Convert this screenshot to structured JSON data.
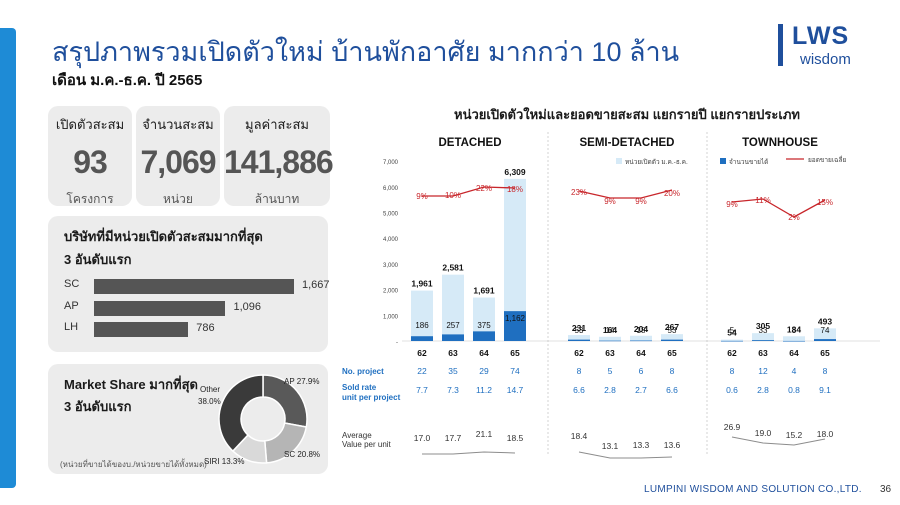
{
  "header": {
    "title": "สรุปภาพรวมเปิดตัวใหม่ บ้านพักอาศัย มากกว่า 10 ล้าน",
    "subtitle": "เดือน ม.ค.-ธ.ค. ปี 2565",
    "logo_main": "LWS",
    "logo_sub": "wisdom"
  },
  "kpis": [
    {
      "label": "เปิดตัวสะสม",
      "value": "93",
      "unit": "โครงการ"
    },
    {
      "label": "จำนวนสะสม",
      "value": "7,069",
      "unit": "หน่วย"
    },
    {
      "label": "มูลค่าสะสม",
      "value": "141,886",
      "unit": "ล้านบาท"
    }
  ],
  "companies": {
    "title": "บริษัทที่มีหน่วยเปิดตัวสะสมมากที่สุด",
    "subtitle": "3 อันดับแรก",
    "items": [
      {
        "name": "SC",
        "value": 1667,
        "label": "1,667"
      },
      {
        "name": "AP",
        "value": 1096,
        "label": "1,096"
      },
      {
        "name": "LH",
        "value": 786,
        "label": "786"
      }
    ]
  },
  "market_share": {
    "title": "Market Share มากที่สุด",
    "subtitle": "3 อันดับแรก",
    "note": "(หน่วยที่ขายได้ของบ./หน่วยขายได้ทั้งหมด)",
    "slices": [
      {
        "name": "AP",
        "value": 27.9,
        "label": "AP 27.9%",
        "color": "#595959"
      },
      {
        "name": "SC",
        "value": 20.8,
        "label": "SC 20.8%",
        "color": "#b5b5b5"
      },
      {
        "name": "SIRI",
        "value": 13.3,
        "label": "SIRI 13.3%",
        "color": "#d9d9d9"
      },
      {
        "name": "Other",
        "value": 38.0,
        "label_name": "Other",
        "label_value": "38.0%",
        "color": "#3a3a3a"
      }
    ]
  },
  "footer": {
    "company": "LUMPINI WISDOM AND SOLUTION CO.,LTD.",
    "page": "36"
  },
  "chart_data": {
    "type": "bar",
    "title": "หน่วยเปิดตัวใหม่และยอดขายสะสม แยกรายปี แยกรายประเภท",
    "legend": [
      {
        "name": "หน่วยเปิดตัว ม.ค.-ธ.ค.",
        "color": "#d6eaf7"
      },
      {
        "name": "จำนวนขายได้",
        "color": "#1f6fc0"
      },
      {
        "name": "ยอดขายเฉลี่ย",
        "color": "#c8262b"
      }
    ],
    "ylim": [
      0,
      7000
    ],
    "yticks": [
      "7,000",
      "6,000",
      "5,000",
      "4,000",
      "3,000",
      "2,000",
      "1,000",
      "-"
    ],
    "row_labels": {
      "projects": "No. project",
      "sold_rate": "Sold rate unit per project",
      "avg_value": "Average Value per unit"
    },
    "groups": [
      {
        "name": "DETACHED",
        "years": [
          "62",
          "63",
          "64",
          "65"
        ],
        "launched": [
          1961,
          2581,
          1691,
          6309
        ],
        "launched_labels": [
          "1,961",
          "2,581",
          "1,691",
          "6,309"
        ],
        "sold": [
          186,
          257,
          375,
          1162
        ],
        "sold_labels": [
          "186",
          "257",
          "375",
          "1,162"
        ],
        "sales_rate": [
          "9%",
          "10%",
          "22%",
          "18%"
        ],
        "projects": [
          "22",
          "35",
          "29",
          "74"
        ],
        "sold_rate": [
          "7.7",
          "7.3",
          "11.2",
          "14.7"
        ],
        "avg_value": [
          "17.0",
          "17.7",
          "21.1",
          "18.5"
        ]
      },
      {
        "name": "SEMI-DETACHED",
        "years": [
          "62",
          "63",
          "64",
          "65"
        ],
        "launched": [
          231,
          164,
          204,
          267
        ],
        "launched_labels": [
          "231",
          "164",
          "204",
          "267"
        ],
        "sold": [
          53,
          14,
          18,
          53
        ],
        "sold_labels": [
          "53",
          "14",
          "18",
          "53"
        ],
        "sales_rate": [
          "23%",
          "9%",
          "9%",
          "20%"
        ],
        "projects": [
          "8",
          "5",
          "6",
          "8"
        ],
        "sold_rate": [
          "6.6",
          "2.8",
          "2.7",
          "6.6"
        ],
        "avg_value": [
          "18.4",
          "13.1",
          "13.3",
          "13.6"
        ]
      },
      {
        "name": "TOWNHOUSE",
        "years": [
          "62",
          "63",
          "64",
          "65"
        ],
        "launched": [
          54,
          305,
          184,
          493
        ],
        "launched_labels": [
          "54",
          "305",
          "184",
          "493"
        ],
        "sold": [
          5,
          33,
          3,
          74
        ],
        "sold_labels": [
          "5",
          "33",
          "3",
          "74"
        ],
        "sales_rate": [
          "9%",
          "11%",
          "2%",
          "15%"
        ],
        "projects": [
          "8",
          "12",
          "4",
          "8"
        ],
        "sold_rate": [
          "0.6",
          "2.8",
          "0.8",
          "9.1"
        ],
        "avg_value": [
          "26.9",
          "19.0",
          "15.2",
          "18.0"
        ]
      }
    ]
  }
}
